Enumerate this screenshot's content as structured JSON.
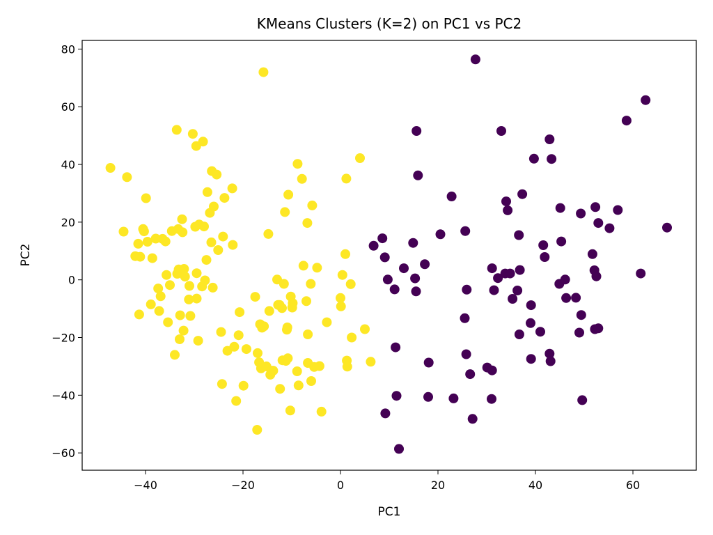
{
  "chart_data": {
    "type": "scatter",
    "title": "KMeans Clusters (K=2) on PC1 vs PC2",
    "xlabel": "PC1",
    "ylabel": "PC2",
    "xlim": [
      -53,
      73
    ],
    "ylim": [
      -66,
      83
    ],
    "xticks": [
      -40,
      -20,
      0,
      20,
      40,
      60
    ],
    "yticks": [
      -60,
      -40,
      -20,
      0,
      20,
      40,
      60,
      80
    ],
    "xtick_labels": [
      "−40",
      "−20",
      "0",
      "20",
      "40",
      "60"
    ],
    "ytick_labels": [
      "−60",
      "−40",
      "−20",
      "0",
      "20",
      "40",
      "60",
      "80"
    ],
    "grid": false,
    "legend": "none",
    "series": [
      {
        "color": "#fde725",
        "points": [
          [
            -47.2,
            38.8
          ],
          [
            -44.5,
            16.7
          ],
          [
            -43.8,
            35.6
          ],
          [
            -42.1,
            8.2
          ],
          [
            -41.5,
            12.5
          ],
          [
            -41.3,
            -12.0
          ],
          [
            -41.1,
            8.0
          ],
          [
            -40.5,
            17.6
          ],
          [
            -40.3,
            16.8
          ],
          [
            -39.9,
            28.3
          ],
          [
            -39.6,
            13.2
          ],
          [
            -38.9,
            -8.5
          ],
          [
            -38.6,
            7.5
          ],
          [
            -37.9,
            14.3
          ],
          [
            -37.4,
            -3.0
          ],
          [
            -37.2,
            -10.8
          ],
          [
            -36.9,
            -5.7
          ],
          [
            -36.5,
            14.2
          ],
          [
            -35.9,
            13.3
          ],
          [
            -35.7,
            1.7
          ],
          [
            -35.4,
            -14.7
          ],
          [
            -35.0,
            -1.8
          ],
          [
            -34.6,
            16.9
          ],
          [
            -34.0,
            -26.0
          ],
          [
            -33.6,
            52.0
          ],
          [
            -33.5,
            2.1
          ],
          [
            -33.3,
            17.6
          ],
          [
            -33.2,
            3.6
          ],
          [
            -33.0,
            -20.6
          ],
          [
            -32.9,
            -12.3
          ],
          [
            -32.5,
            21.0
          ],
          [
            -32.4,
            16.5
          ],
          [
            -32.2,
            -17.6
          ],
          [
            -32.1,
            3.8
          ],
          [
            -31.9,
            1.1
          ],
          [
            -31.1,
            -6.8
          ],
          [
            -31.0,
            -2.1
          ],
          [
            -30.8,
            -12.5
          ],
          [
            -30.3,
            50.6
          ],
          [
            -29.8,
            18.4
          ],
          [
            -29.6,
            46.4
          ],
          [
            -29.5,
            -6.5
          ],
          [
            -29.5,
            2.3
          ],
          [
            -29.2,
            -21.1
          ],
          [
            -29.0,
            19.2
          ],
          [
            -28.4,
            -2.3
          ],
          [
            -28.2,
            47.9
          ],
          [
            -28.0,
            18.5
          ],
          [
            -27.8,
            -0.2
          ],
          [
            -27.5,
            6.9
          ],
          [
            -27.3,
            30.4
          ],
          [
            -26.8,
            23.2
          ],
          [
            -26.5,
            13.0
          ],
          [
            -26.4,
            37.7
          ],
          [
            -26.2,
            -2.7
          ],
          [
            -26.0,
            25.4
          ],
          [
            -25.4,
            36.5
          ],
          [
            -25.1,
            10.3
          ],
          [
            -24.5,
            -18.1
          ],
          [
            -24.3,
            -36.1
          ],
          [
            -24.1,
            15.0
          ],
          [
            -23.8,
            28.4
          ],
          [
            -23.2,
            -24.6
          ],
          [
            -22.2,
            31.7
          ],
          [
            -22.1,
            12.1
          ],
          [
            -21.8,
            -23.2
          ],
          [
            -21.4,
            -42.0
          ],
          [
            -20.9,
            -19.2
          ],
          [
            -20.7,
            -11.2
          ],
          [
            -19.9,
            -36.7
          ],
          [
            -19.3,
            -24.0
          ],
          [
            -17.5,
            -5.9
          ],
          [
            -17.1,
            -52.0
          ],
          [
            -17.0,
            -25.4
          ],
          [
            -16.7,
            -28.6
          ],
          [
            -16.5,
            -15.4
          ],
          [
            -16.3,
            -30.7
          ],
          [
            -16.1,
            -16.6
          ],
          [
            -15.8,
            72.0
          ],
          [
            -15.7,
            -16.1
          ],
          [
            -15.2,
            -30.0
          ],
          [
            -14.8,
            15.9
          ],
          [
            -14.6,
            -10.8
          ],
          [
            -14.4,
            -32.9
          ],
          [
            -14.2,
            -31.5
          ],
          [
            -13.8,
            -31.5
          ],
          [
            -13.0,
            0.1
          ],
          [
            -12.8,
            -8.7
          ],
          [
            -12.5,
            -8.7
          ],
          [
            -12.4,
            -37.8
          ],
          [
            -12.0,
            -9.8
          ],
          [
            -11.9,
            -27.9
          ],
          [
            -11.6,
            -1.4
          ],
          [
            -11.4,
            23.5
          ],
          [
            -11.2,
            -28.1
          ],
          [
            -11.0,
            -17.3
          ],
          [
            -10.9,
            -16.5
          ],
          [
            -10.8,
            -27.2
          ],
          [
            -10.7,
            29.5
          ],
          [
            -10.3,
            -45.3
          ],
          [
            -10.2,
            -5.8
          ],
          [
            -9.9,
            -9.6
          ],
          [
            -9.8,
            -8.1
          ],
          [
            -8.9,
            -31.7
          ],
          [
            -8.8,
            40.2
          ],
          [
            -8.6,
            -36.6
          ],
          [
            -7.9,
            35.0
          ],
          [
            -7.6,
            4.9
          ],
          [
            -7.0,
            -7.4
          ],
          [
            -6.8,
            19.7
          ],
          [
            -6.7,
            -18.9
          ],
          [
            -6.7,
            -28.8
          ],
          [
            -6.1,
            -1.4
          ],
          [
            -6.0,
            -35.1
          ],
          [
            -5.8,
            25.8
          ],
          [
            -5.4,
            -30.2
          ],
          [
            -4.8,
            4.2
          ],
          [
            -4.3,
            -29.9
          ],
          [
            -3.9,
            -45.7
          ],
          [
            -2.8,
            -14.7
          ],
          [
            0.0,
            -6.3
          ],
          [
            0.1,
            -9.2
          ],
          [
            0.4,
            1.7
          ],
          [
            1.0,
            8.9
          ],
          [
            1.2,
            35.1
          ],
          [
            1.3,
            -28.0
          ],
          [
            1.4,
            -30.1
          ],
          [
            2.1,
            -1.5
          ],
          [
            2.3,
            -20.0
          ],
          [
            4.0,
            42.2
          ],
          [
            5.0,
            -17.1
          ],
          [
            6.2,
            -28.4
          ]
        ]
      },
      {
        "color": "#440154",
        "points": [
          [
            6.8,
            11.8
          ],
          [
            8.6,
            14.4
          ],
          [
            9.1,
            7.8
          ],
          [
            9.2,
            -46.3
          ],
          [
            9.7,
            0.1
          ],
          [
            11.1,
            -3.3
          ],
          [
            11.3,
            -23.4
          ],
          [
            11.5,
            -40.2
          ],
          [
            12.0,
            -58.6
          ],
          [
            13.0,
            4.0
          ],
          [
            14.9,
            12.8
          ],
          [
            15.3,
            0.5
          ],
          [
            15.5,
            -4.0
          ],
          [
            15.6,
            51.6
          ],
          [
            15.9,
            36.2
          ],
          [
            17.3,
            5.4
          ],
          [
            18.1,
            -28.7
          ],
          [
            18.0,
            -40.6
          ],
          [
            20.5,
            15.8
          ],
          [
            22.8,
            28.9
          ],
          [
            23.2,
            -41.1
          ],
          [
            25.6,
            16.9
          ],
          [
            25.5,
            -13.3
          ],
          [
            25.8,
            -25.8
          ],
          [
            25.9,
            -3.4
          ],
          [
            26.6,
            -32.7
          ],
          [
            27.1,
            -48.2
          ],
          [
            27.7,
            76.4
          ],
          [
            30.1,
            -30.4
          ],
          [
            31.1,
            -31.4
          ],
          [
            31.0,
            -41.3
          ],
          [
            31.1,
            4.0
          ],
          [
            31.5,
            -3.6
          ],
          [
            32.3,
            0.6
          ],
          [
            33.0,
            51.6
          ],
          [
            33.8,
            2.2
          ],
          [
            34.0,
            27.2
          ],
          [
            34.3,
            24.1
          ],
          [
            34.8,
            2.2
          ],
          [
            35.3,
            -6.6
          ],
          [
            36.3,
            -3.7
          ],
          [
            36.6,
            15.5
          ],
          [
            36.7,
            -18.9
          ],
          [
            36.8,
            3.4
          ],
          [
            37.3,
            29.7
          ],
          [
            39.1,
            -8.8
          ],
          [
            39.0,
            -15.0
          ],
          [
            39.1,
            -27.4
          ],
          [
            39.7,
            42.0
          ],
          [
            41.0,
            -18.0
          ],
          [
            41.6,
            12.0
          ],
          [
            41.9,
            7.9
          ],
          [
            42.9,
            48.7
          ],
          [
            42.9,
            -25.6
          ],
          [
            43.1,
            -28.2
          ],
          [
            43.3,
            41.9
          ],
          [
            44.9,
            -1.4
          ],
          [
            45.1,
            24.9
          ],
          [
            45.3,
            13.3
          ],
          [
            46.1,
            0.1
          ],
          [
            46.3,
            -6.3
          ],
          [
            48.3,
            -6.2
          ],
          [
            49.0,
            -18.3
          ],
          [
            49.3,
            23.0
          ],
          [
            49.4,
            -12.2
          ],
          [
            49.6,
            -41.7
          ],
          [
            51.7,
            8.9
          ],
          [
            52.1,
            3.3
          ],
          [
            52.2,
            -17.1
          ],
          [
            52.3,
            25.2
          ],
          [
            52.5,
            1.2
          ],
          [
            52.9,
            -16.8
          ],
          [
            52.9,
            19.7
          ],
          [
            55.2,
            17.9
          ],
          [
            56.9,
            24.2
          ],
          [
            58.7,
            55.2
          ],
          [
            61.6,
            2.2
          ],
          [
            62.6,
            62.3
          ],
          [
            67.0,
            18.1
          ]
        ]
      }
    ]
  }
}
